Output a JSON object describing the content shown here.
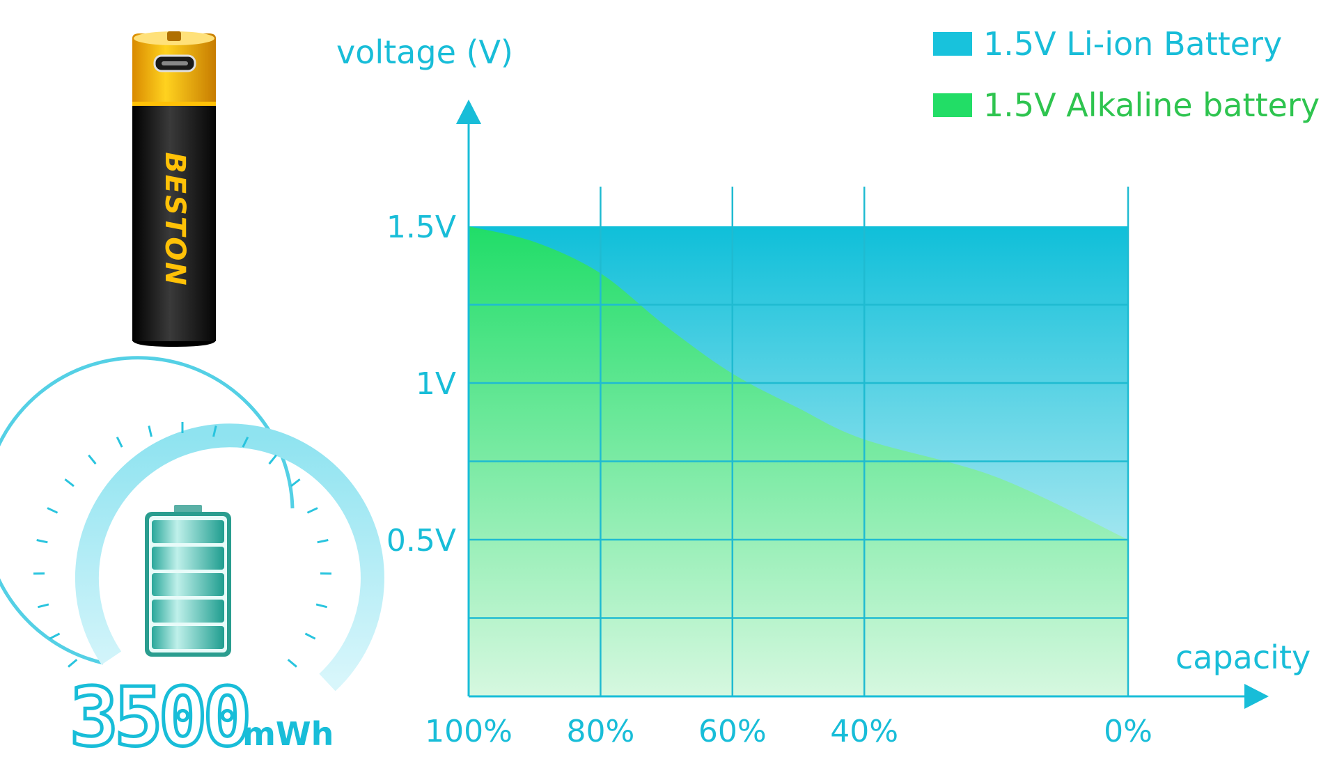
{
  "chart_data": {
    "type": "area",
    "ylabel": "voltage (V)",
    "xlabel": "capacity",
    "x_ticks": [
      "100%",
      "80%",
      "60%",
      "40%",
      "0%"
    ],
    "y_ticks": [
      "1.5V",
      "1V",
      "0.5V"
    ],
    "y_tick_values": [
      1.5,
      1.0,
      0.5
    ],
    "ylim": [
      0,
      1.75
    ],
    "legend_position": "top-right",
    "grid": true,
    "series": [
      {
        "name": "1.5V Li-ion Battery",
        "color": "#18c2dc",
        "capacity": [
          100,
          80,
          60,
          40,
          0
        ],
        "voltage": [
          1.5,
          1.5,
          1.5,
          1.5,
          1.5
        ]
      },
      {
        "name": "1.5V Alkaline battery",
        "color": "#22dd66",
        "capacity": [
          100,
          90,
          80,
          70,
          60,
          50,
          40,
          20,
          0
        ],
        "voltage": [
          1.5,
          1.45,
          1.35,
          1.18,
          1.03,
          0.92,
          0.82,
          0.7,
          0.5
        ]
      }
    ]
  },
  "product": {
    "brand": "BESTON",
    "capacity_number": "3500",
    "capacity_unit": "mWh"
  },
  "colors": {
    "accent": "#18bdd8",
    "alkaline_text": "#2ec44f"
  }
}
